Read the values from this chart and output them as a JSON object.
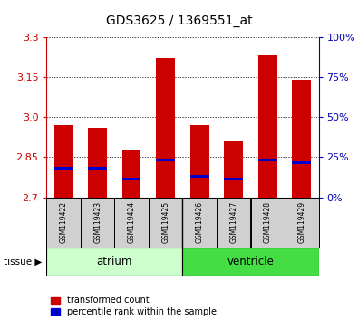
{
  "title": "GDS3625 / 1369551_at",
  "samples": [
    "GSM119422",
    "GSM119423",
    "GSM119424",
    "GSM119425",
    "GSM119426",
    "GSM119427",
    "GSM119428",
    "GSM119429"
  ],
  "red_values": [
    2.97,
    2.96,
    2.88,
    3.22,
    2.97,
    2.91,
    3.23,
    3.14
  ],
  "blue_values": [
    2.81,
    2.81,
    2.77,
    2.84,
    2.78,
    2.77,
    2.84,
    2.83
  ],
  "y_min": 2.7,
  "y_max": 3.3,
  "y_ticks": [
    2.7,
    2.85,
    3.0,
    3.15,
    3.3
  ],
  "y_right_ticks": [
    0,
    25,
    50,
    75,
    100
  ],
  "bar_width": 0.55,
  "red_color": "#CC0000",
  "blue_color": "#0000CC",
  "atrium_color_light": "#CCFFCC",
  "ventricle_color": "#44DD44",
  "tick_label_color": "#CC0000",
  "right_tick_color": "#0000BB",
  "sample_box_color": "#D0D0D0"
}
